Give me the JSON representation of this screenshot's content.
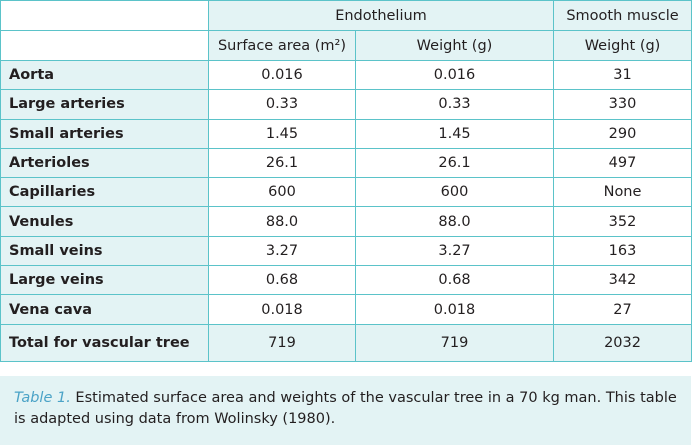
{
  "table": {
    "group_headers": {
      "endothelium": "Endothelium",
      "smooth_muscle": "Smooth muscle"
    },
    "sub_headers": {
      "surface_area": "Surface area (m²)",
      "endo_weight": "Weight (g)",
      "sm_weight": "Weight (g)"
    },
    "rows": [
      {
        "label": "Aorta",
        "area": "0.016",
        "weight": "0.016",
        "sm": "31"
      },
      {
        "label": "Large arteries",
        "area": "0.33",
        "weight": "0.33",
        "sm": "330"
      },
      {
        "label": "Small arteries",
        "area": "1.45",
        "weight": "1.45",
        "sm": "290"
      },
      {
        "label": "Arterioles",
        "area": "26.1",
        "weight": "26.1",
        "sm": "497"
      },
      {
        "label": "Capillaries",
        "area": "600",
        "weight": "600",
        "sm": "None"
      },
      {
        "label": "Venules",
        "area": "88.0",
        "weight": "88.0",
        "sm": "352"
      },
      {
        "label": "Small veins",
        "area": "3.27",
        "weight": "3.27",
        "sm": "163"
      },
      {
        "label": "Large veins",
        "area": "0.68",
        "weight": "0.68",
        "sm": "342"
      },
      {
        "label": "Vena cava",
        "area": "0.018",
        "weight": "0.018",
        "sm": "27"
      }
    ],
    "total": {
      "label": "Total for vascular tree",
      "area": "719",
      "weight": "719",
      "sm": "2032"
    }
  },
  "caption": {
    "lead": "Table 1.",
    "text": " Estimated surface area and weights of the vascular tree in a 70 kg man. This table is adapted using data from Wolinsky (1980)."
  },
  "colors": {
    "border": "#5bc3c9",
    "header_fill": "#e3f3f4",
    "caption_lead": "#4ba3c7"
  }
}
